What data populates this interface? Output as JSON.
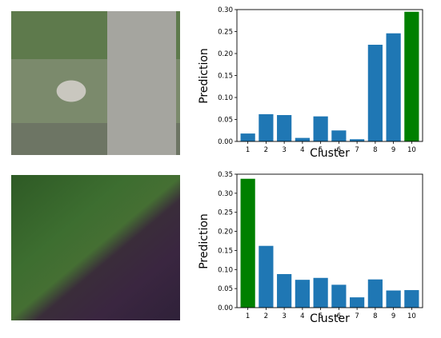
{
  "chart_data": [
    {
      "type": "bar",
      "categories": [
        "1",
        "2",
        "3",
        "4",
        "5",
        "6",
        "7",
        "8",
        "9",
        "10"
      ],
      "values": [
        0.018,
        0.062,
        0.06,
        0.008,
        0.057,
        0.025,
        0.005,
        0.22,
        0.246,
        0.295
      ],
      "highlight_index": 9,
      "colors": {
        "bar": "#1f77b4",
        "highlight": "#008000"
      },
      "xlabel": "Cluster",
      "ylabel": "Prediction",
      "ylim": [
        0,
        0.3
      ],
      "yticks": [
        "0.00",
        "0.05",
        "0.10",
        "0.15",
        "0.20",
        "0.25",
        "0.30"
      ],
      "grid": false
    },
    {
      "type": "bar",
      "categories": [
        "1",
        "2",
        "3",
        "4",
        "5",
        "6",
        "7",
        "8",
        "9",
        "10"
      ],
      "values": [
        0.338,
        0.162,
        0.088,
        0.073,
        0.078,
        0.06,
        0.027,
        0.074,
        0.045,
        0.046
      ],
      "highlight_index": 0,
      "colors": {
        "bar": "#1f77b4",
        "highlight": "#008000"
      },
      "xlabel": "Cluster",
      "ylabel": "Prediction",
      "ylim": [
        0,
        0.35
      ],
      "yticks": [
        "0.00",
        "0.05",
        "0.10",
        "0.15",
        "0.20",
        "0.25",
        "0.30",
        "0.35"
      ],
      "grid": false
    }
  ]
}
